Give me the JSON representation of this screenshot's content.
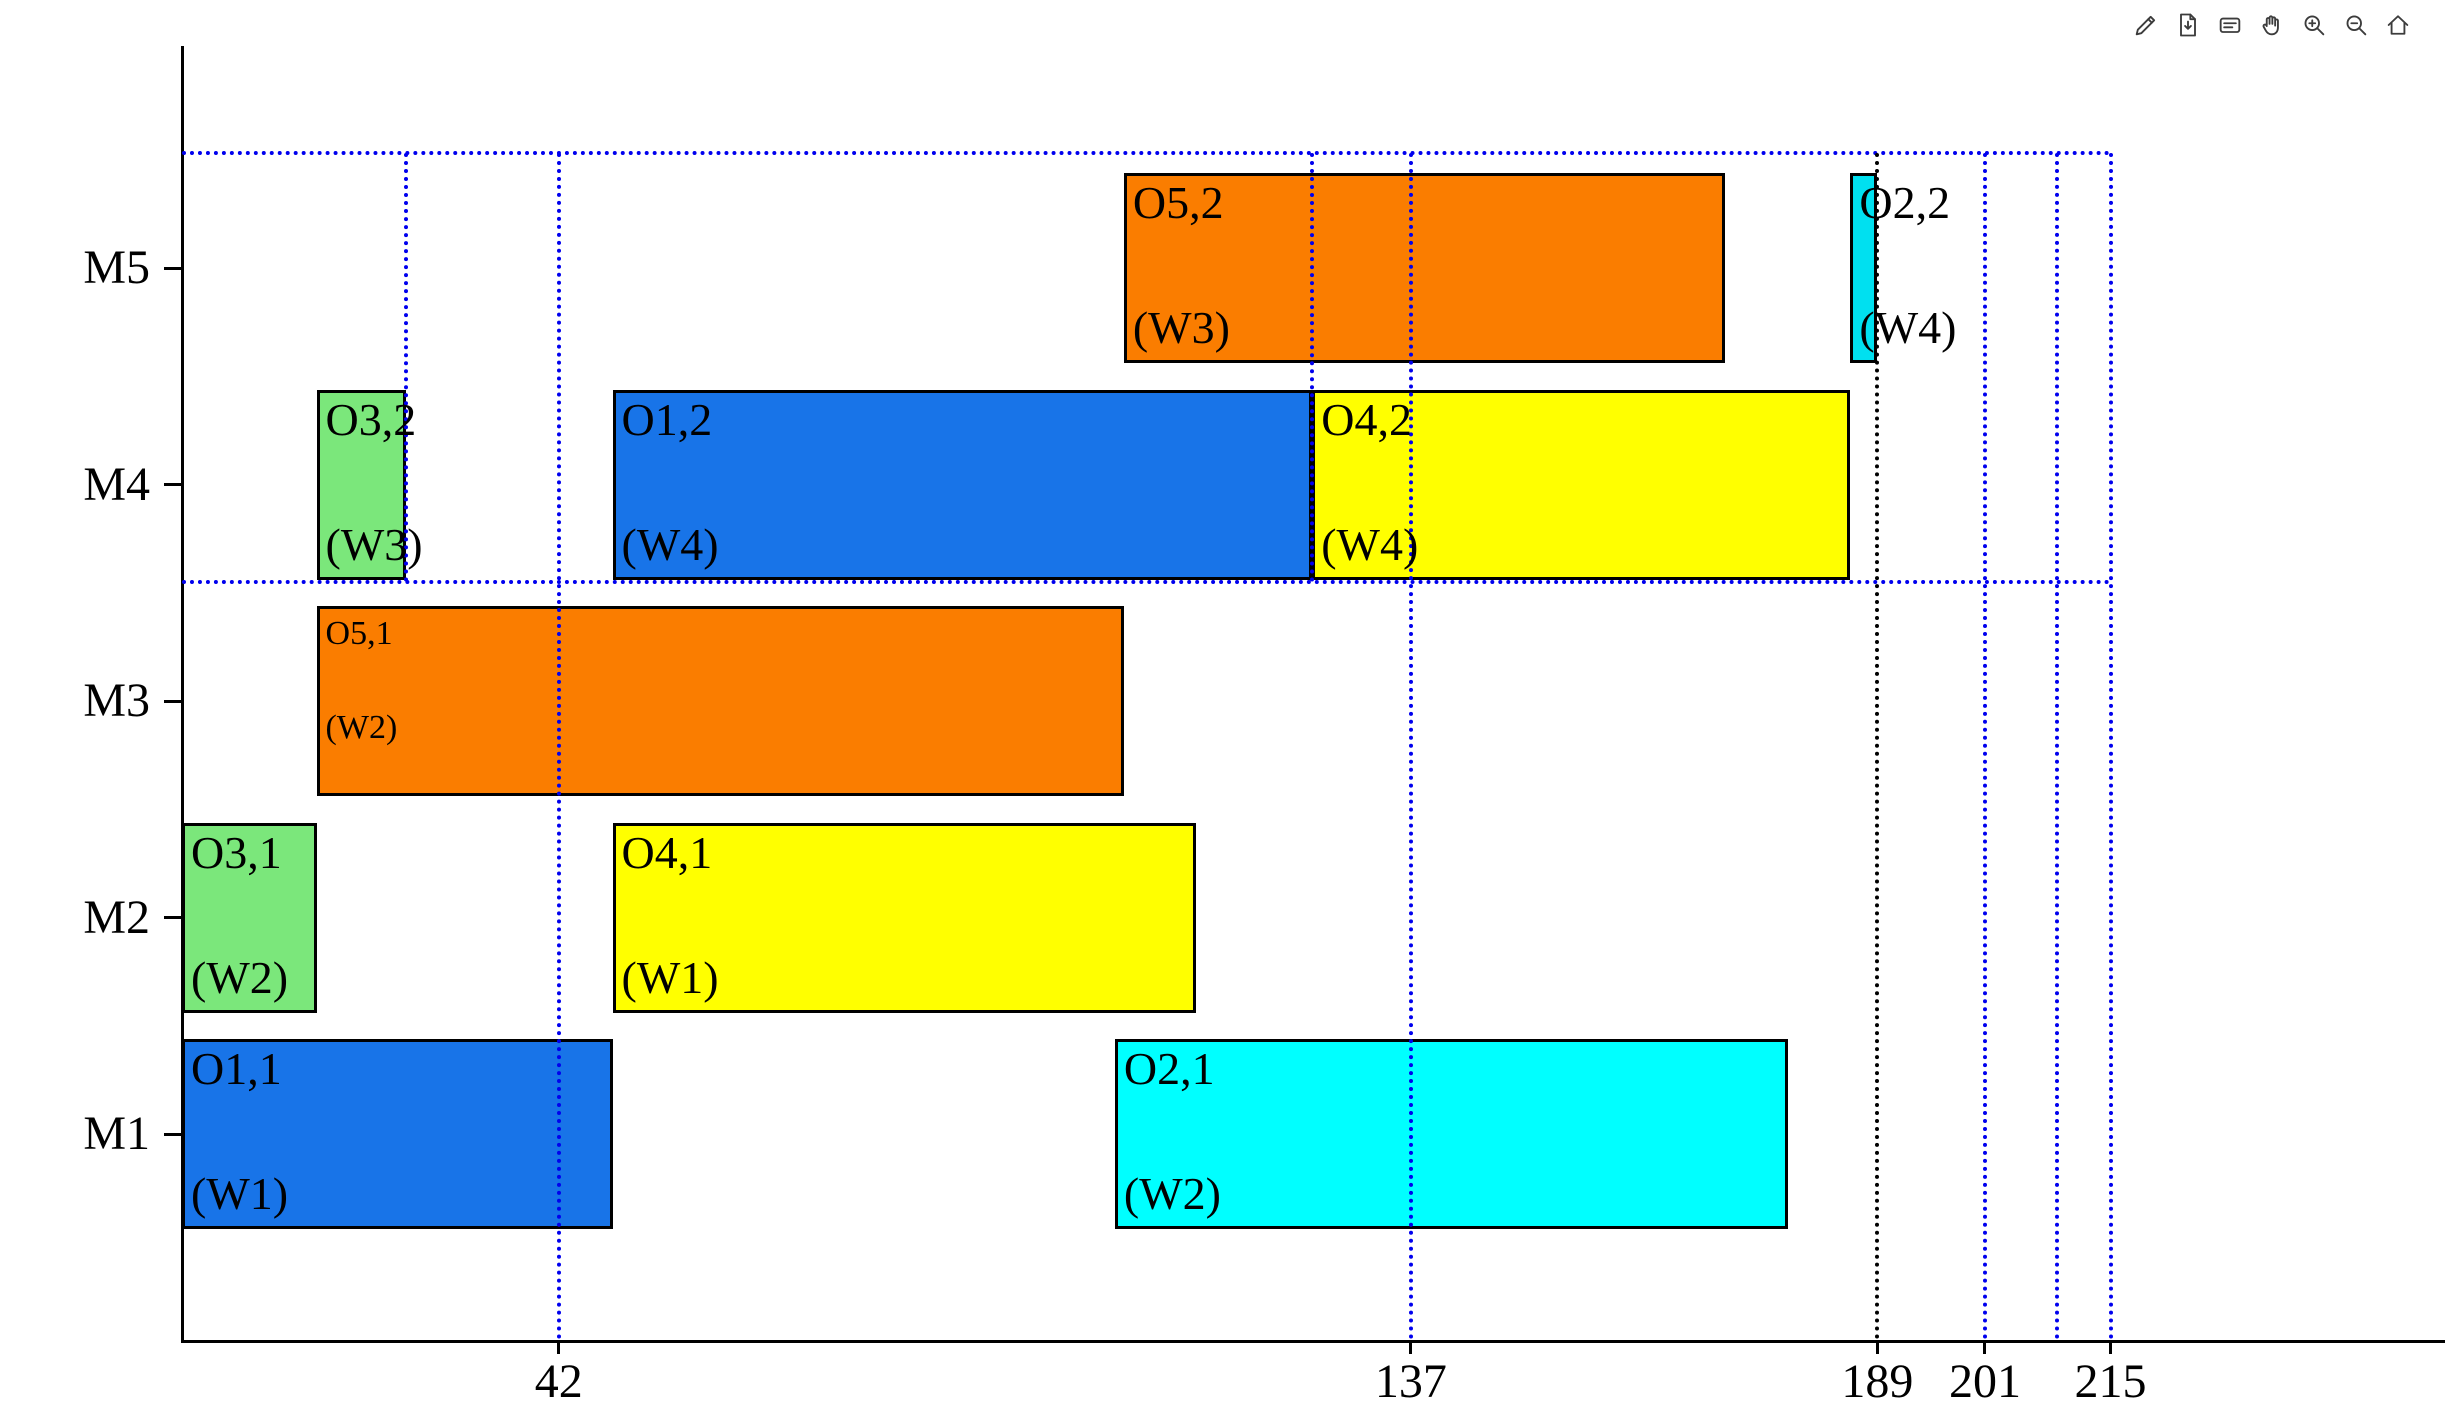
{
  "toolbar": {
    "icons": [
      "brush",
      "save",
      "datatips",
      "pan",
      "zoom-in",
      "zoom-out",
      "home"
    ]
  },
  "chart_data": {
    "type": "bar",
    "variant": "gantt",
    "orientation": "horizontal",
    "title": "",
    "xlabel": "",
    "ylabel": "",
    "machines": [
      "M1",
      "M2",
      "M3",
      "M4",
      "M5"
    ],
    "xlim": [
      0,
      252
    ],
    "x_ticks": [
      {
        "t": 42,
        "label": "42"
      },
      {
        "t": 137,
        "label": "137"
      },
      {
        "t": 189,
        "label": "189"
      },
      {
        "t": 201,
        "label": "201"
      },
      {
        "t": 215,
        "label": "215"
      }
    ],
    "bars": [
      {
        "machine": "M1",
        "operation": "O1,1",
        "worker": "(W1)",
        "start": 0,
        "end": 48,
        "color": "#1874E8",
        "text_size": "normal"
      },
      {
        "machine": "M1",
        "operation": "O2,1",
        "worker": "(W2)",
        "start": 104,
        "end": 179,
        "color": "#00FFFF",
        "text_size": "normal"
      },
      {
        "machine": "M2",
        "operation": "O3,1",
        "worker": "(W2)",
        "start": 0,
        "end": 15,
        "color": "#7BE77B",
        "text_size": "normal"
      },
      {
        "machine": "M2",
        "operation": "O4,1",
        "worker": "(W1)",
        "start": 48,
        "end": 113,
        "color": "#FFFF00",
        "text_size": "normal"
      },
      {
        "machine": "M3",
        "operation": "O5,1",
        "worker": "(W2)",
        "start": 15,
        "end": 105,
        "color": "#FA7D00",
        "text_size": "small"
      },
      {
        "machine": "M4",
        "operation": "O3,2",
        "worker": "(W3)",
        "start": 15,
        "end": 25,
        "color": "#7BE77B",
        "text_size": "normal"
      },
      {
        "machine": "M4",
        "operation": "O1,2",
        "worker": "(W4)",
        "start": 48,
        "end": 126,
        "color": "#1874E8",
        "text_size": "normal"
      },
      {
        "machine": "M4",
        "operation": "O4,2",
        "worker": "(W4)",
        "start": 126,
        "end": 186,
        "color": "#FFFF00",
        "text_size": "normal"
      },
      {
        "machine": "M5",
        "operation": "O5,2",
        "worker": "(W3)",
        "start": 105,
        "end": 172,
        "color": "#FA7D00",
        "text_size": "normal"
      },
      {
        "machine": "M5",
        "operation": "O2,2",
        "worker": "(W4)",
        "start": 186,
        "end": 189,
        "color": "#00E0F0",
        "text_size": "normal"
      }
    ],
    "reference_lines": {
      "vertical": [
        {
          "t": 25,
          "color": "#0000EE",
          "extent": "band"
        },
        {
          "t": 42,
          "color": "#0000EE",
          "extent": "full"
        },
        {
          "t": 126,
          "color": "#0000EE",
          "extent": "band"
        },
        {
          "t": 137,
          "color": "#0000EE",
          "extent": "full"
        },
        {
          "t": 189,
          "color": "#000000",
          "extent": "full"
        },
        {
          "t": 201,
          "color": "#0000EE",
          "extent": "full"
        },
        {
          "t": 209,
          "color": "#0000EE",
          "extent": "full"
        },
        {
          "t": 215,
          "color": "#0000EE",
          "extent": "full"
        }
      ],
      "horizontal": [
        {
          "machine_y": 5.53,
          "t_start": 0,
          "t_end": 215,
          "color": "#0000EE"
        },
        {
          "machine_y": 3.55,
          "t_start": 0,
          "t_end": 215,
          "color": "#0000EE"
        }
      ]
    }
  }
}
